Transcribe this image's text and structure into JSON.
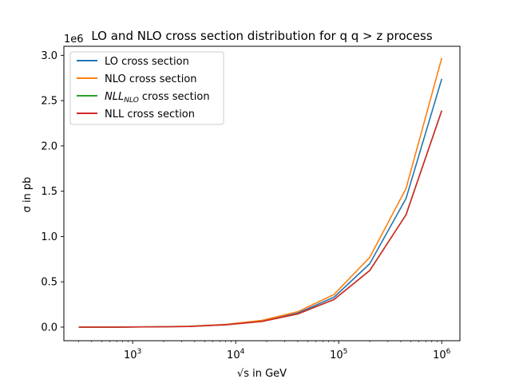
{
  "chart_data": {
    "type": "line",
    "title": "LO and NLO cross section distribution for q q > z process",
    "xlabel": "√s in GeV",
    "ylabel": "σ in pb",
    "x_scale": "log",
    "xlim": [
      215,
      1500000
    ],
    "ylim": [
      -0.15,
      3.1
    ],
    "y_multiplier": "1e6",
    "x_ticks": [
      {
        "value": 1000,
        "base": "10",
        "exp": "3"
      },
      {
        "value": 10000,
        "base": "10",
        "exp": "4"
      },
      {
        "value": 100000,
        "base": "10",
        "exp": "5"
      },
      {
        "value": 1000000,
        "base": "10",
        "exp": "6"
      }
    ],
    "y_ticks": [
      "0.0",
      "0.5",
      "1.0",
      "1.5",
      "2.0",
      "2.5",
      "3.0"
    ],
    "grid": false,
    "legend_position": "upper-left",
    "x": [
      300,
      700,
      1600,
      3500,
      8000,
      18000,
      40000,
      90000,
      200000,
      450000,
      1000000
    ],
    "series": [
      {
        "name": "LO cross section",
        "color": "#1f77b4",
        "values": [
          0.0,
          0.0005,
          0.003,
          0.008,
          0.028,
          0.068,
          0.155,
          0.33,
          0.7,
          1.42,
          2.74
        ]
      },
      {
        "name": "NLO cross section",
        "color": "#ff7f0e",
        "values": [
          0.0,
          0.0006,
          0.0035,
          0.009,
          0.03,
          0.074,
          0.17,
          0.36,
          0.77,
          1.53,
          2.97
        ]
      },
      {
        "name": "NLL_NLO cross section",
        "color": "#2ca02c",
        "values": [
          0.0,
          0.0004,
          0.003,
          0.007,
          0.026,
          0.063,
          0.145,
          0.305,
          0.625,
          1.24,
          2.39
        ]
      },
      {
        "name": "NLL cross section",
        "color": "#d62728",
        "values": [
          0.0,
          0.0004,
          0.003,
          0.007,
          0.026,
          0.063,
          0.145,
          0.305,
          0.625,
          1.24,
          2.39
        ]
      }
    ],
    "legend": {
      "lo": "LO cross section",
      "nlo": "NLO cross section",
      "nll_nlo_main": "NLL",
      "nll_nlo_sub": "NLO",
      "nll_nlo_rest": " cross section",
      "nll": "NLL cross section"
    }
  }
}
